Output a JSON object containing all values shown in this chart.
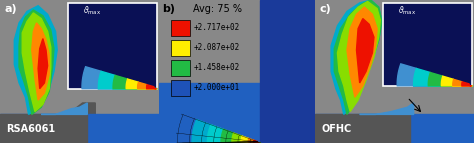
{
  "fig_width": 4.74,
  "fig_height": 1.43,
  "dpi": 100,
  "dark_blue": "#0a1055",
  "medium_blue": "#1a3a9a",
  "blue": "#1e52b8",
  "steel_blue": "#2060c0",
  "light_blue": "#4090d0",
  "cyan_blue": "#00aacc",
  "cyan": "#00cccc",
  "teal": "#00bbaa",
  "green": "#22bb44",
  "lime": "#88dd00",
  "yellow": "#ffee00",
  "orange": "#ff8800",
  "red_orange": "#ff4400",
  "red": "#ee1100",
  "gray_bg": "#888888",
  "dark_gray": "#555555",
  "panel_bg": "#0a1055",
  "workpiece_blue": "#3366aa",
  "inset_border": "#dddddd",
  "panel_b_bg": "#999999",
  "legend_items": [
    {
      "color": "#ee1100",
      "text": "+2.717e+02"
    },
    {
      "color": "#ffee00",
      "text": "+2.087e+02"
    },
    {
      "color": "#22bb44",
      "text": "+1.458e+02"
    },
    {
      "color": "#1e52b8",
      "text": "+2.000e+01"
    }
  ]
}
